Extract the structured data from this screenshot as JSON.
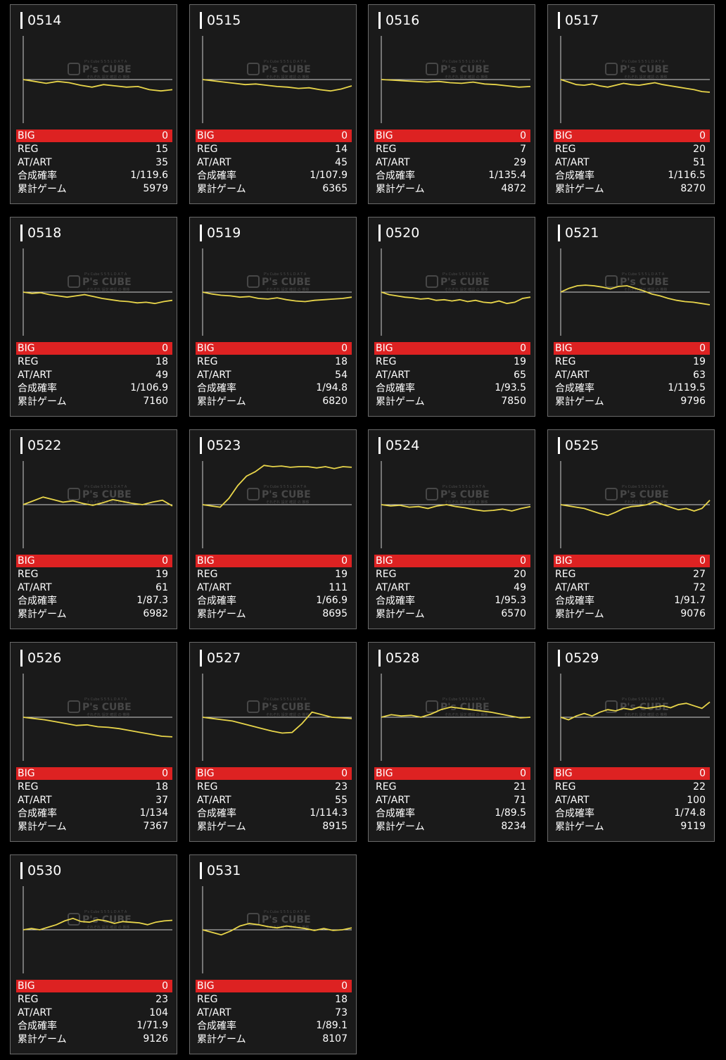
{
  "stat_labels": {
    "big": "BIG",
    "reg": "REG",
    "at": "AT/ART",
    "prob": "合成確率",
    "games": "累計ゲーム"
  },
  "watermark": {
    "brand": "P's CUBE",
    "top": "P's Cube S 5 5 L  D A T A",
    "bottom": "それぞれ 設定 確認 の 推移"
  },
  "colors": {
    "background": "#000000",
    "card": "#1a1a1a",
    "big_bar": "#dd2222",
    "line": "#e8d54a"
  },
  "machines": [
    {
      "id": "0514",
      "big": "0",
      "reg": "15",
      "at": "35",
      "prob": "1/119.6",
      "games": "5979",
      "trend": [
        0,
        -3,
        -6,
        -3,
        -5,
        -9,
        -12,
        -8,
        -10,
        -12,
        -11,
        -16,
        -18,
        -16
      ]
    },
    {
      "id": "0515",
      "big": "0",
      "reg": "14",
      "at": "45",
      "prob": "1/107.9",
      "games": "6365",
      "trend": [
        0,
        -2,
        -4,
        -6,
        -8,
        -7,
        -9,
        -11,
        -12,
        -14,
        -13,
        -16,
        -18,
        -15,
        -10
      ]
    },
    {
      "id": "0516",
      "big": "0",
      "reg": "7",
      "at": "29",
      "prob": "1/135.4",
      "games": "4872",
      "trend": [
        0,
        -1,
        -2,
        -3,
        -4,
        -3,
        -5,
        -6,
        -4,
        -7,
        -8,
        -10,
        -12,
        -11
      ]
    },
    {
      "id": "0517",
      "big": "0",
      "reg": "20",
      "at": "51",
      "prob": "1/116.5",
      "games": "8270",
      "trend": [
        0,
        -4,
        -8,
        -9,
        -7,
        -10,
        -12,
        -9,
        -6,
        -8,
        -9,
        -7,
        -5,
        -8,
        -10,
        -12,
        -14,
        -16,
        -19,
        -20
      ]
    },
    {
      "id": "0518",
      "big": "0",
      "reg": "18",
      "at": "49",
      "prob": "1/106.9",
      "games": "7160",
      "trend": [
        0,
        -2,
        -1,
        -4,
        -6,
        -8,
        -6,
        -4,
        -7,
        -10,
        -12,
        -14,
        -15,
        -17,
        -16,
        -18,
        -15,
        -13
      ]
    },
    {
      "id": "0519",
      "big": "0",
      "reg": "18",
      "at": "54",
      "prob": "1/94.8",
      "games": "6820",
      "trend": [
        0,
        -3,
        -5,
        -6,
        -8,
        -7,
        -10,
        -11,
        -9,
        -12,
        -14,
        -15,
        -13,
        -12,
        -11,
        -10,
        -8
      ]
    },
    {
      "id": "0520",
      "big": "0",
      "reg": "19",
      "at": "65",
      "prob": "1/93.5",
      "games": "7850",
      "trend": [
        0,
        -4,
        -6,
        -8,
        -9,
        -11,
        -10,
        -13,
        -12,
        -14,
        -12,
        -15,
        -13,
        -16,
        -17,
        -14,
        -18,
        -16,
        -10,
        -8
      ]
    },
    {
      "id": "0521",
      "big": "0",
      "reg": "19",
      "at": "63",
      "prob": "1/119.5",
      "games": "9796",
      "trend": [
        0,
        6,
        10,
        11,
        10,
        8,
        5,
        9,
        10,
        6,
        2,
        -3,
        -6,
        -10,
        -13,
        -15,
        -16,
        -18,
        -20
      ]
    },
    {
      "id": "0522",
      "big": "0",
      "reg": "19",
      "at": "61",
      "prob": "1/87.3",
      "games": "6982",
      "trend": [
        0,
        6,
        12,
        8,
        4,
        6,
        2,
        -1,
        3,
        8,
        5,
        2,
        0,
        4,
        7,
        -2
      ]
    },
    {
      "id": "0523",
      "big": "0",
      "reg": "19",
      "at": "111",
      "prob": "1/66.9",
      "games": "8695",
      "trend": [
        0,
        -2,
        -4,
        10,
        30,
        45,
        52,
        62,
        60,
        61,
        59,
        60,
        60,
        58,
        60,
        57,
        60,
        59
      ]
    },
    {
      "id": "0524",
      "big": "0",
      "reg": "20",
      "at": "49",
      "prob": "1/95.3",
      "games": "6570",
      "trend": [
        0,
        -2,
        -1,
        -4,
        -3,
        -6,
        -2,
        0,
        -3,
        -5,
        -8,
        -10,
        -9,
        -7,
        -10,
        -6,
        -3
      ]
    },
    {
      "id": "0525",
      "big": "0",
      "reg": "27",
      "at": "72",
      "prob": "1/91.7",
      "games": "9076",
      "trend": [
        0,
        -2,
        -4,
        -6,
        -10,
        -14,
        -17,
        -12,
        -6,
        -3,
        -2,
        0,
        5,
        0,
        -4,
        -8,
        -6,
        -10,
        -6,
        7
      ]
    },
    {
      "id": "0526",
      "big": "0",
      "reg": "18",
      "at": "37",
      "prob": "1/134",
      "games": "7367",
      "trend": [
        0,
        -2,
        -4,
        -7,
        -10,
        -13,
        -12,
        -15,
        -16,
        -18,
        -21,
        -24,
        -27,
        -30,
        -31
      ]
    },
    {
      "id": "0527",
      "big": "0",
      "reg": "23",
      "at": "55",
      "prob": "1/114.3",
      "games": "8915",
      "trend": [
        0,
        -2,
        -4,
        -6,
        -10,
        -14,
        -18,
        -22,
        -25,
        -24,
        -10,
        8,
        4,
        0,
        -1,
        -2
      ]
    },
    {
      "id": "0528",
      "big": "0",
      "reg": "21",
      "at": "71",
      "prob": "1/89.5",
      "games": "8234",
      "trend": [
        0,
        4,
        2,
        3,
        0,
        5,
        12,
        16,
        14,
        12,
        10,
        8,
        5,
        2,
        -1,
        0
      ]
    },
    {
      "id": "0529",
      "big": "0",
      "reg": "22",
      "at": "100",
      "prob": "1/74.8",
      "games": "9119",
      "trend": [
        0,
        -4,
        2,
        6,
        2,
        8,
        12,
        10,
        14,
        12,
        16,
        14,
        16,
        18,
        15,
        20,
        22,
        18,
        14,
        24
      ]
    },
    {
      "id": "0530",
      "big": "0",
      "reg": "23",
      "at": "104",
      "prob": "1/71.9",
      "games": "9126",
      "trend": [
        0,
        2,
        0,
        4,
        8,
        14,
        18,
        13,
        12,
        16,
        14,
        10,
        13,
        12,
        11,
        8,
        12,
        14,
        15
      ]
    },
    {
      "id": "0531",
      "big": "0",
      "reg": "18",
      "at": "73",
      "prob": "1/89.1",
      "games": "8107",
      "trend": [
        0,
        -4,
        -8,
        -2,
        6,
        10,
        8,
        5,
        3,
        6,
        4,
        2,
        -1,
        2,
        -1,
        0,
        3
      ]
    }
  ]
}
